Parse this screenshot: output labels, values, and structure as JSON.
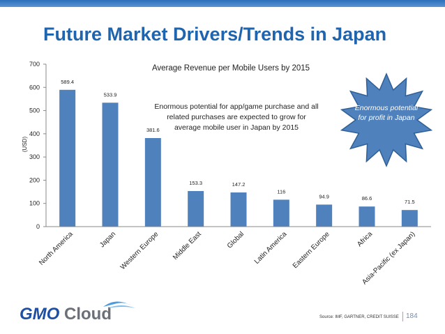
{
  "slide": {
    "title": "Future Market Drivers/Trends in Japan",
    "source": "Source: IMF, GARTNER, CREDIT SUISSE",
    "page_number": "184",
    "logo_text": "GMO Cloud"
  },
  "annotation": {
    "text_lines": [
      "Enormous potential for app/game purchase and all",
      "related purchases are expected to grow for",
      "average mobile user in Japan by 2015"
    ]
  },
  "callout": {
    "text": "Enormous potential for profit in Japan",
    "fill": "#4f81bd"
  },
  "chart_data": {
    "type": "bar",
    "title": "Average Revenue per Mobile Users by 2015",
    "ylabel": "(USD)",
    "xlabel": "",
    "categories": [
      "North America",
      "Japan",
      "Western Europe",
      "Middle East",
      "Global",
      "Latin America",
      "Eastern Europe",
      "Africa",
      "Asia-Pacific (ex Japan)"
    ],
    "values": [
      589.4,
      533.9,
      381.6,
      153.3,
      147.2,
      116,
      94.9,
      86.6,
      71.5
    ],
    "value_labels": [
      "589.4",
      "533.9",
      "381.6",
      "153.3",
      "147.2",
      "116",
      "94.9",
      "86.6",
      "71.5"
    ],
    "ylim": [
      0,
      700
    ],
    "yticks": [
      0,
      100,
      200,
      300,
      400,
      500,
      600,
      700
    ],
    "grid": false,
    "legend": "none",
    "bar_color": "#4f81bd"
  }
}
